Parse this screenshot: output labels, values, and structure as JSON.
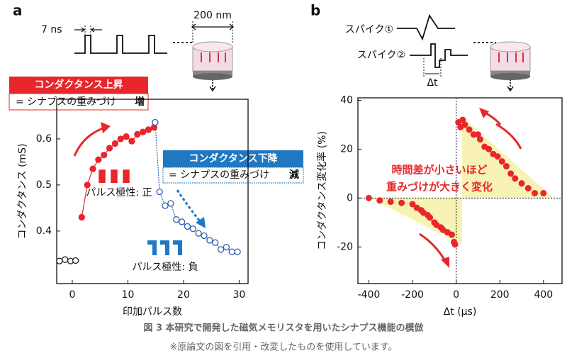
{
  "chart_data": [
    {
      "type": "line",
      "panel_label": "a",
      "xlabel": "印加パルス数",
      "ylabel": "コンダクタンス (mS)",
      "xlim": [
        -2.8,
        31.6
      ],
      "ylim": [
        0.286,
        0.686
      ],
      "xticks": [
        0,
        10,
        20,
        30
      ],
      "yticks": [
        0.4,
        0.5,
        0.6
      ],
      "series": [
        {
          "color": "#222222",
          "filled": false,
          "x": [
            -2.3,
            -1.3,
            -0.3,
            0.6
          ],
          "values": [
            0.335,
            0.338,
            0.335,
            0.336
          ]
        },
        {
          "color": "#e8262b",
          "filled": true,
          "x": [
            1.7,
            2.7,
            3.7,
            4.7,
            5.7,
            6.7,
            7.7,
            8.7,
            9.7,
            10.7,
            11.7,
            12.7,
            13.7,
            14.7
          ],
          "values": [
            0.43,
            0.5,
            0.535,
            0.555,
            0.565,
            0.58,
            0.59,
            0.6,
            0.605,
            0.595,
            0.61,
            0.615,
            0.62,
            0.625
          ]
        },
        {
          "color": "#2f5fb5",
          "filled": false,
          "x": [
            14.9,
            15.7,
            16.7,
            17.7,
            18.7,
            19.7,
            20.7,
            21.7,
            22.7,
            23.7,
            24.7,
            25.7,
            26.7,
            27.7,
            28.7,
            29.7
          ],
          "values": [
            0.636,
            0.485,
            0.455,
            0.46,
            0.425,
            0.42,
            0.41,
            0.405,
            0.395,
            0.39,
            0.38,
            0.375,
            0.36,
            0.365,
            0.355,
            0.355
          ]
        }
      ],
      "diagram": {
        "pulse_width": "7 ns",
        "size": "200 nm"
      },
      "callouts": [
        {
          "title": "コンダクタンス上昇",
          "text": "= シナプスの重みづけ",
          "emphasis": "増"
        },
        {
          "title": "コンダクタンス下降",
          "text": "= シナプスの重みづけ",
          "emphasis": "減"
        }
      ],
      "polarity_labels": [
        "パルス極性: 正",
        "パルス極性: 負"
      ]
    },
    {
      "type": "scatter",
      "panel_label": "b",
      "xlabel": "Δt (μs)",
      "ylabel": "コンダクタンス変化率 (%)",
      "xlim": [
        -450,
        485
      ],
      "ylim": [
        -35,
        41
      ],
      "xticks": [
        -400,
        -200,
        0,
        200,
        400
      ],
      "yticks": [
        -20,
        0,
        20,
        40
      ],
      "color": "#e8262b",
      "x": [
        -400,
        -350,
        -300,
        -250,
        -200,
        -180,
        -160,
        -150,
        -130,
        -120,
        -100,
        -90,
        -70,
        -60,
        -40,
        -20,
        -10,
        -5,
        10,
        20,
        30,
        40,
        60,
        80,
        100,
        110,
        130,
        150,
        170,
        190,
        210,
        230,
        250,
        270,
        300,
        330,
        360,
        400
      ],
      "values": [
        0,
        -1,
        -1.5,
        -2,
        -2.5,
        -4,
        -5,
        -6,
        -7,
        -8,
        -10,
        -11,
        -12,
        -13,
        -14,
        -15,
        -18,
        -19,
        31,
        29,
        32,
        30,
        28,
        26,
        26,
        24,
        21,
        20,
        18,
        17,
        15,
        13,
        10,
        8,
        6,
        4,
        2,
        2
      ],
      "annotations": [
        "時間差が小さいほど",
        "重みづけが大きく変化"
      ],
      "diagram": {
        "spike1": "スパイク①",
        "spike2": "スパイク②",
        "dt": "Δt"
      }
    }
  ],
  "figure": {
    "caption": "図 3  本研究で開発した磁気メモリスタを用いたシナプス機能の模倣",
    "note": "※原論文の図を引用・改変したものを使用しています。"
  }
}
